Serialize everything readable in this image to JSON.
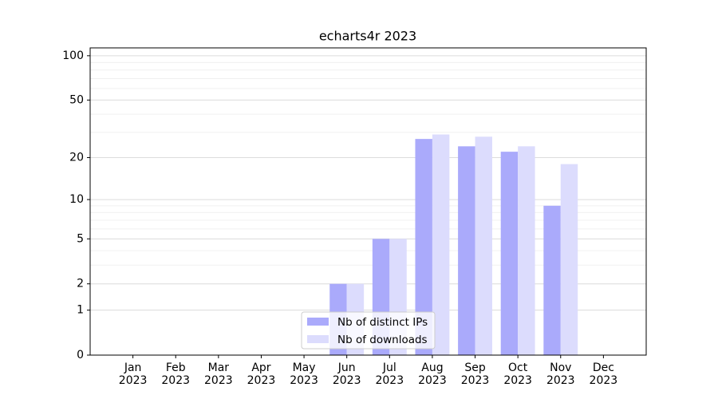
{
  "chart_data": {
    "type": "bar",
    "title": "echarts4r 2023",
    "categories": [
      "Jan\n2023",
      "Feb\n2023",
      "Mar\n2023",
      "Apr\n2023",
      "May\n2023",
      "Jun\n2023",
      "Jul\n2023",
      "Aug\n2023",
      "Sep\n2023",
      "Oct\n2023",
      "Nov\n2023",
      "Dec\n2023"
    ],
    "series": [
      {
        "name": "Nb of distinct IPs",
        "color": "#aaaafb",
        "values": [
          0,
          0,
          0,
          0,
          0,
          2,
          5,
          27,
          24,
          22,
          9,
          0
        ]
      },
      {
        "name": "Nb of downloads",
        "color": "#dcdcfd",
        "values": [
          0,
          0,
          0,
          0,
          0,
          2,
          5,
          29,
          28,
          24,
          18,
          0
        ]
      }
    ],
    "yscale": "log1p",
    "ylim": [
      0,
      113
    ],
    "yticks": [
      0,
      1,
      2,
      5,
      10,
      20,
      50,
      100
    ],
    "minor_yticks": [
      3,
      4,
      6,
      7,
      8,
      9,
      30,
      40,
      60,
      70,
      80,
      90
    ],
    "grid": true,
    "legend": "lower center"
  }
}
